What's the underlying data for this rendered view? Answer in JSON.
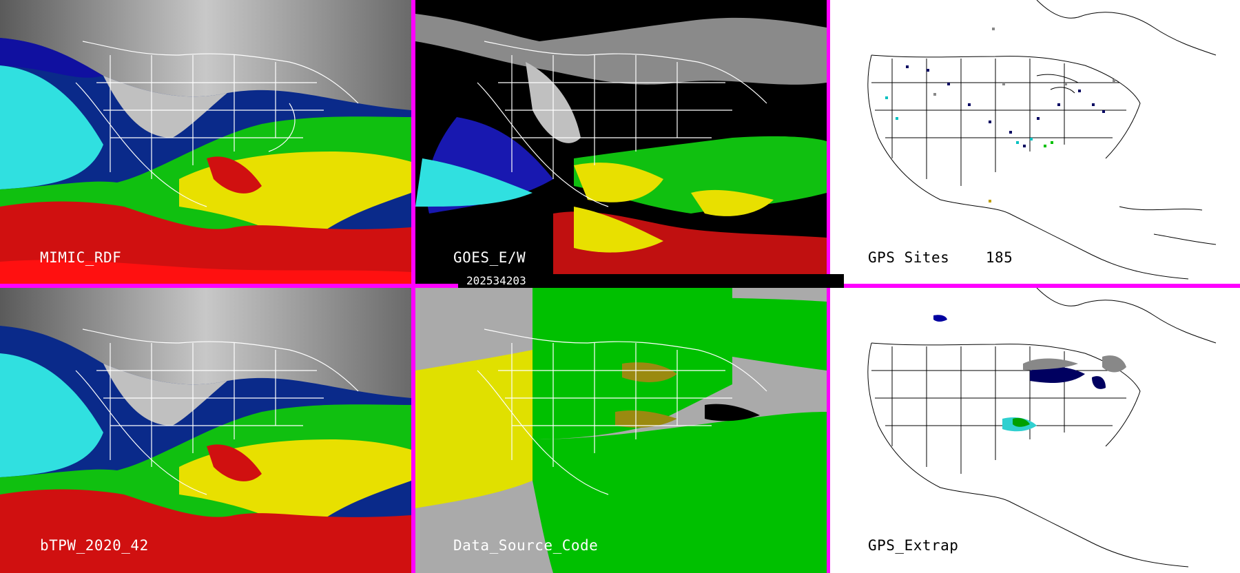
{
  "panels": {
    "mimic": {
      "label": "MIMIC_RDF"
    },
    "goes": {
      "label": "GOES_E/W"
    },
    "gps": {
      "label": "GPS Sites",
      "count": "185"
    },
    "btpw": {
      "label": "bTPW_2020_42"
    },
    "dsc": {
      "label": "Data_Source_Code"
    },
    "extrap": {
      "label": "GPS_Extrap"
    }
  },
  "date_bar": "202534203",
  "colors": {
    "border": "#ff00ff",
    "pw_scale": [
      "#000000",
      "#ffffff",
      "#00008b",
      "#0000ff",
      "#00e5e5",
      "#00ff00",
      "#ffff00",
      "#ff0000"
    ],
    "source_scale": [
      "#aaaaaa",
      "#e0e000",
      "#00c000",
      "#9a8a10"
    ]
  }
}
